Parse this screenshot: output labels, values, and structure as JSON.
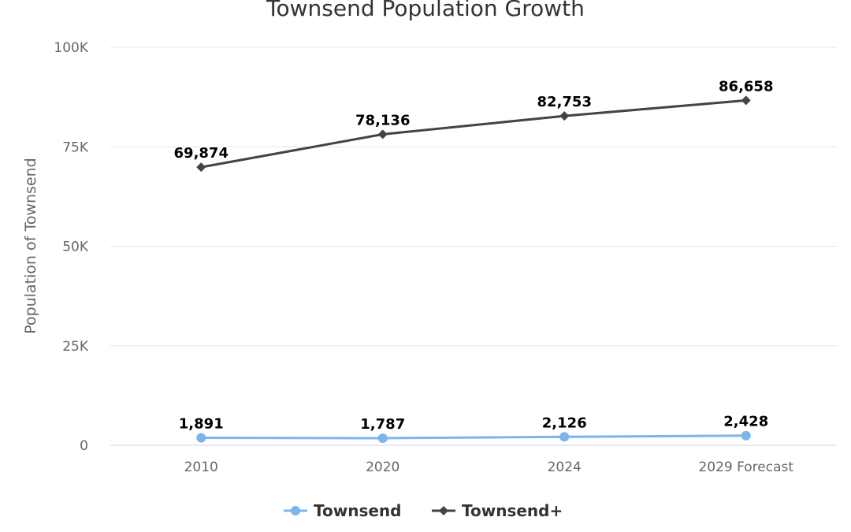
{
  "chart_data": {
    "type": "line",
    "title": "Townsend Population Growth",
    "xlabel": "",
    "ylabel": "Population of Townsend",
    "categories": [
      "2010",
      "2020",
      "2024",
      "2029 Forecast"
    ],
    "ylim": [
      0,
      100000
    ],
    "yticks": [
      {
        "value": 0,
        "label": "0"
      },
      {
        "value": 25000,
        "label": "25K"
      },
      {
        "value": 50000,
        "label": "50K"
      },
      {
        "value": 75000,
        "label": "75K"
      },
      {
        "value": 100000,
        "label": "100K"
      }
    ],
    "grid": true,
    "legend_position": "bottom",
    "series": [
      {
        "name": "Townsend",
        "color": "#7cb5ec",
        "marker": "circle",
        "values": [
          1891,
          1787,
          2126,
          2428
        ],
        "labels": [
          "1,891",
          "1,787",
          "2,126",
          "2,428"
        ]
      },
      {
        "name": "Townsend+",
        "color": "#434348",
        "marker": "diamond",
        "values": [
          69874,
          78136,
          82753,
          86658
        ],
        "labels": [
          "69,874",
          "78,136",
          "82,753",
          "86,658"
        ]
      }
    ]
  }
}
